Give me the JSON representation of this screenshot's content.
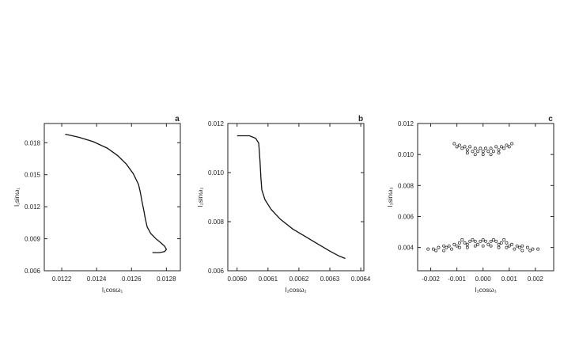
{
  "chart_data": [
    {
      "type": "line",
      "panel_label": "a",
      "xlabel": "I₁cosω₁",
      "ylabel": "I₁sinω₁",
      "xlim": [
        0.0121,
        0.01288
      ],
      "ylim": [
        0.006,
        0.0198
      ],
      "xticks": [
        "0.0122",
        "0.0124",
        "0.0126",
        "0.0128"
      ],
      "xtick_values": [
        0.0122,
        0.0124,
        0.0126,
        0.0128
      ],
      "yticks": [
        "0.006",
        "0.009",
        "0.012",
        "0.015",
        "0.018"
      ],
      "ytick_values": [
        0.006,
        0.009,
        0.012,
        0.015,
        0.018
      ],
      "series": [
        {
          "x": [
            0.01222,
            0.0123,
            0.01238,
            0.01246,
            0.01252,
            0.01257,
            0.01261,
            0.01264,
            0.01265,
            0.01266,
            0.01267,
            0.01268,
            0.01269,
            0.01271,
            0.01274,
            0.01277,
            0.01279,
            0.0128,
            0.01279,
            0.01276,
            0.01272
          ],
          "y": [
            0.0188,
            0.0185,
            0.0181,
            0.0175,
            0.0168,
            0.016,
            0.0151,
            0.0141,
            0.0134,
            0.0125,
            0.0117,
            0.0108,
            0.0101,
            0.0095,
            0.009,
            0.0086,
            0.0083,
            0.008,
            0.0078,
            0.0077,
            0.0077
          ]
        }
      ]
    },
    {
      "type": "line",
      "panel_label": "b",
      "xlabel": "I₂cosω₂",
      "ylabel": "I₂sinω₂",
      "xlim": [
        0.00597,
        0.00641
      ],
      "ylim": [
        0.006,
        0.012
      ],
      "xticks": [
        "0.0060",
        "0.0061",
        "0.0062",
        "0.0063",
        "0.0064"
      ],
      "xtick_values": [
        0.006,
        0.0061,
        0.0062,
        0.0063,
        0.0064
      ],
      "yticks": [
        "0.006",
        "0.008",
        "0.010",
        "0.012"
      ],
      "ytick_values": [
        0.006,
        0.008,
        0.01,
        0.012
      ],
      "series": [
        {
          "x": [
            0.006,
            0.00604,
            0.00606,
            0.00607,
            0.006074,
            0.006077,
            0.00608,
            0.00609,
            0.00611,
            0.00614,
            0.00618,
            0.00622,
            0.00626,
            0.0063,
            0.00633,
            0.00635
          ],
          "y": [
            0.0115,
            0.0115,
            0.0114,
            0.0112,
            0.0105,
            0.0098,
            0.0093,
            0.0089,
            0.0085,
            0.0081,
            0.0077,
            0.0074,
            0.0071,
            0.0068,
            0.0066,
            0.0065
          ]
        }
      ]
    },
    {
      "type": "scatter",
      "panel_label": "c",
      "xlabel": "I₃cosω₃",
      "ylabel": "I₃sinω₃",
      "xlim": [
        -0.0025,
        0.0027
      ],
      "ylim": [
        0.0025,
        0.012
      ],
      "xticks": [
        "-0.002",
        "-0.001",
        "0.000",
        "0.001",
        "0.002"
      ],
      "xtick_values": [
        -0.002,
        -0.001,
        0.0,
        0.001,
        0.002
      ],
      "yticks": [
        "0.004",
        "0.006",
        "0.008",
        "0.010",
        "0.012"
      ],
      "ytick_values": [
        0.004,
        0.006,
        0.008,
        0.01,
        0.012
      ],
      "series": [
        {
          "x": [
            -0.0011,
            -0.0009,
            -0.0007,
            -0.0005,
            -0.0003,
            -0.0001,
            0.0001,
            0.0003,
            0.0005,
            0.0007,
            0.0009,
            0.0011,
            -0.001,
            -0.0008,
            -0.0006,
            -0.0004,
            -0.0002,
            0.0,
            0.0002,
            0.0004,
            0.0006,
            0.0008,
            0.001,
            -0.0006,
            -0.0003,
            0.0,
            0.0003,
            0.0006
          ],
          "y": [
            0.0107,
            0.0106,
            0.0105,
            0.0105,
            0.0104,
            0.0104,
            0.0104,
            0.0104,
            0.0105,
            0.0105,
            0.0106,
            0.0107,
            0.0105,
            0.0104,
            0.0103,
            0.0102,
            0.0102,
            0.0102,
            0.0102,
            0.0102,
            0.0103,
            0.0104,
            0.0105,
            0.0101,
            0.01,
            0.01,
            0.01,
            0.0101
          ]
        },
        {
          "x": [
            -0.0021,
            -0.0019,
            -0.0017,
            -0.0015,
            -0.0013,
            -0.0011,
            -0.0009,
            -0.0007,
            -0.0005,
            -0.0003,
            -0.0001,
            0.0001,
            0.0003,
            0.0005,
            0.0007,
            0.0009,
            0.0011,
            0.0013,
            0.0015,
            0.0017,
            0.0019,
            0.0021,
            -0.0018,
            -0.0015,
            -0.0012,
            -0.0009,
            -0.0006,
            -0.0003,
            0.0,
            0.0003,
            0.0006,
            0.0009,
            0.0012,
            0.0015,
            0.0018,
            -0.0014,
            -0.001,
            -0.0006,
            -0.0002,
            0.0002,
            0.0006,
            0.001,
            0.0014,
            -0.0008,
            -0.0004,
            0.0,
            0.0004,
            0.0008
          ],
          "y": [
            0.0039,
            0.0039,
            0.004,
            0.0041,
            0.0041,
            0.0042,
            0.0043,
            0.0043,
            0.0044,
            0.0044,
            0.0044,
            0.0044,
            0.0044,
            0.0044,
            0.0043,
            0.0043,
            0.0042,
            0.0041,
            0.0041,
            0.004,
            0.0039,
            0.0039,
            0.0038,
            0.0038,
            0.0039,
            0.004,
            0.004,
            0.0041,
            0.0041,
            0.0041,
            0.004,
            0.004,
            0.0039,
            0.0038,
            0.0038,
            0.004,
            0.0041,
            0.0042,
            0.0042,
            0.0042,
            0.0042,
            0.0041,
            0.004,
            0.0045,
            0.0045,
            0.0045,
            0.0045,
            0.0045
          ]
        }
      ]
    }
  ]
}
